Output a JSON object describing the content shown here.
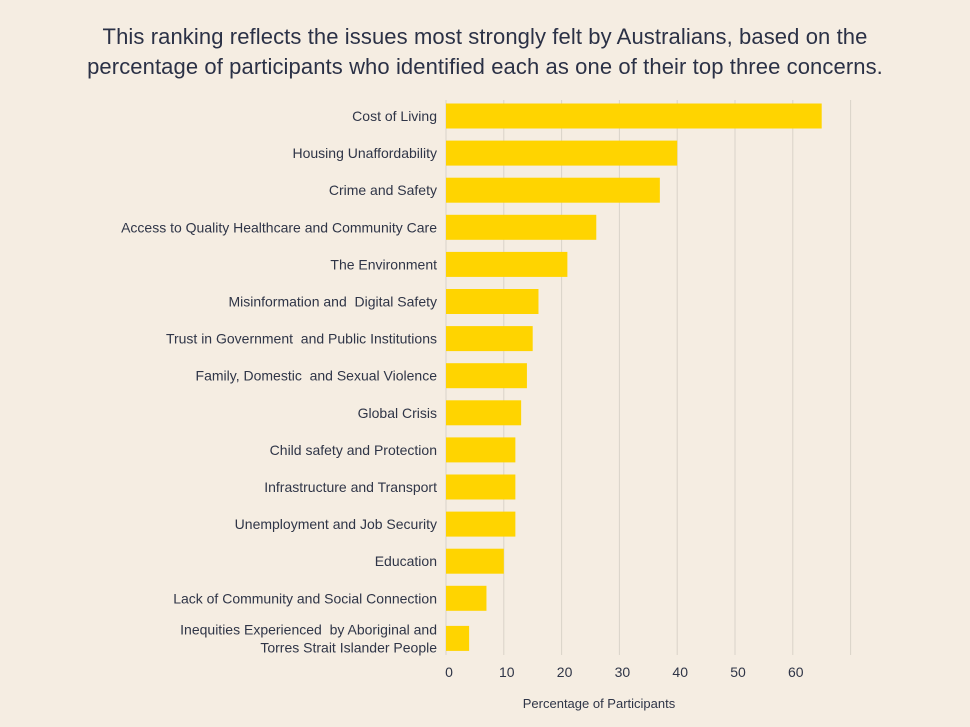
{
  "title": "This ranking reflects the issues most strongly felt by Australians, based on the percentage of participants who identified each as one of their top three concerns.",
  "colors": {
    "background": "#f5ede2",
    "bar": "#ffd400",
    "grid": "#d9d3c9",
    "text": "#2f3547"
  },
  "chart_data": {
    "type": "bar",
    "orientation": "horizontal",
    "title": "This ranking reflects the issues most strongly felt by Australians, based on the percentage of participants who identified each as one of their top three concerns.",
    "xlabel": "Percentage of Participants",
    "ylabel": "",
    "xlim": [
      0,
      70
    ],
    "xticks": [
      0,
      10,
      20,
      30,
      40,
      50,
      60
    ],
    "grid": "vertical",
    "categories": [
      "Cost of Living",
      "Housing Unaffordability",
      "Crime and Safety",
      "Access to Quality Healthcare and Community Care",
      "The Environment",
      "Misinformation and  Digital Safety",
      "Trust in Government  and Public Institutions",
      "Family, Domestic  and Sexual Violence",
      "Global Crisis",
      "Child safety and Protection",
      "Infrastructure and Transport",
      "Unemployment and Job Security",
      "Education",
      "Lack of Community and Social Connection",
      "Inequities Experienced  by Aboriginal and\nTorres Strait Islander People"
    ],
    "values": [
      65,
      40,
      37,
      26,
      21,
      16,
      15,
      14,
      13,
      12,
      12,
      12,
      10,
      7,
      4
    ]
  }
}
